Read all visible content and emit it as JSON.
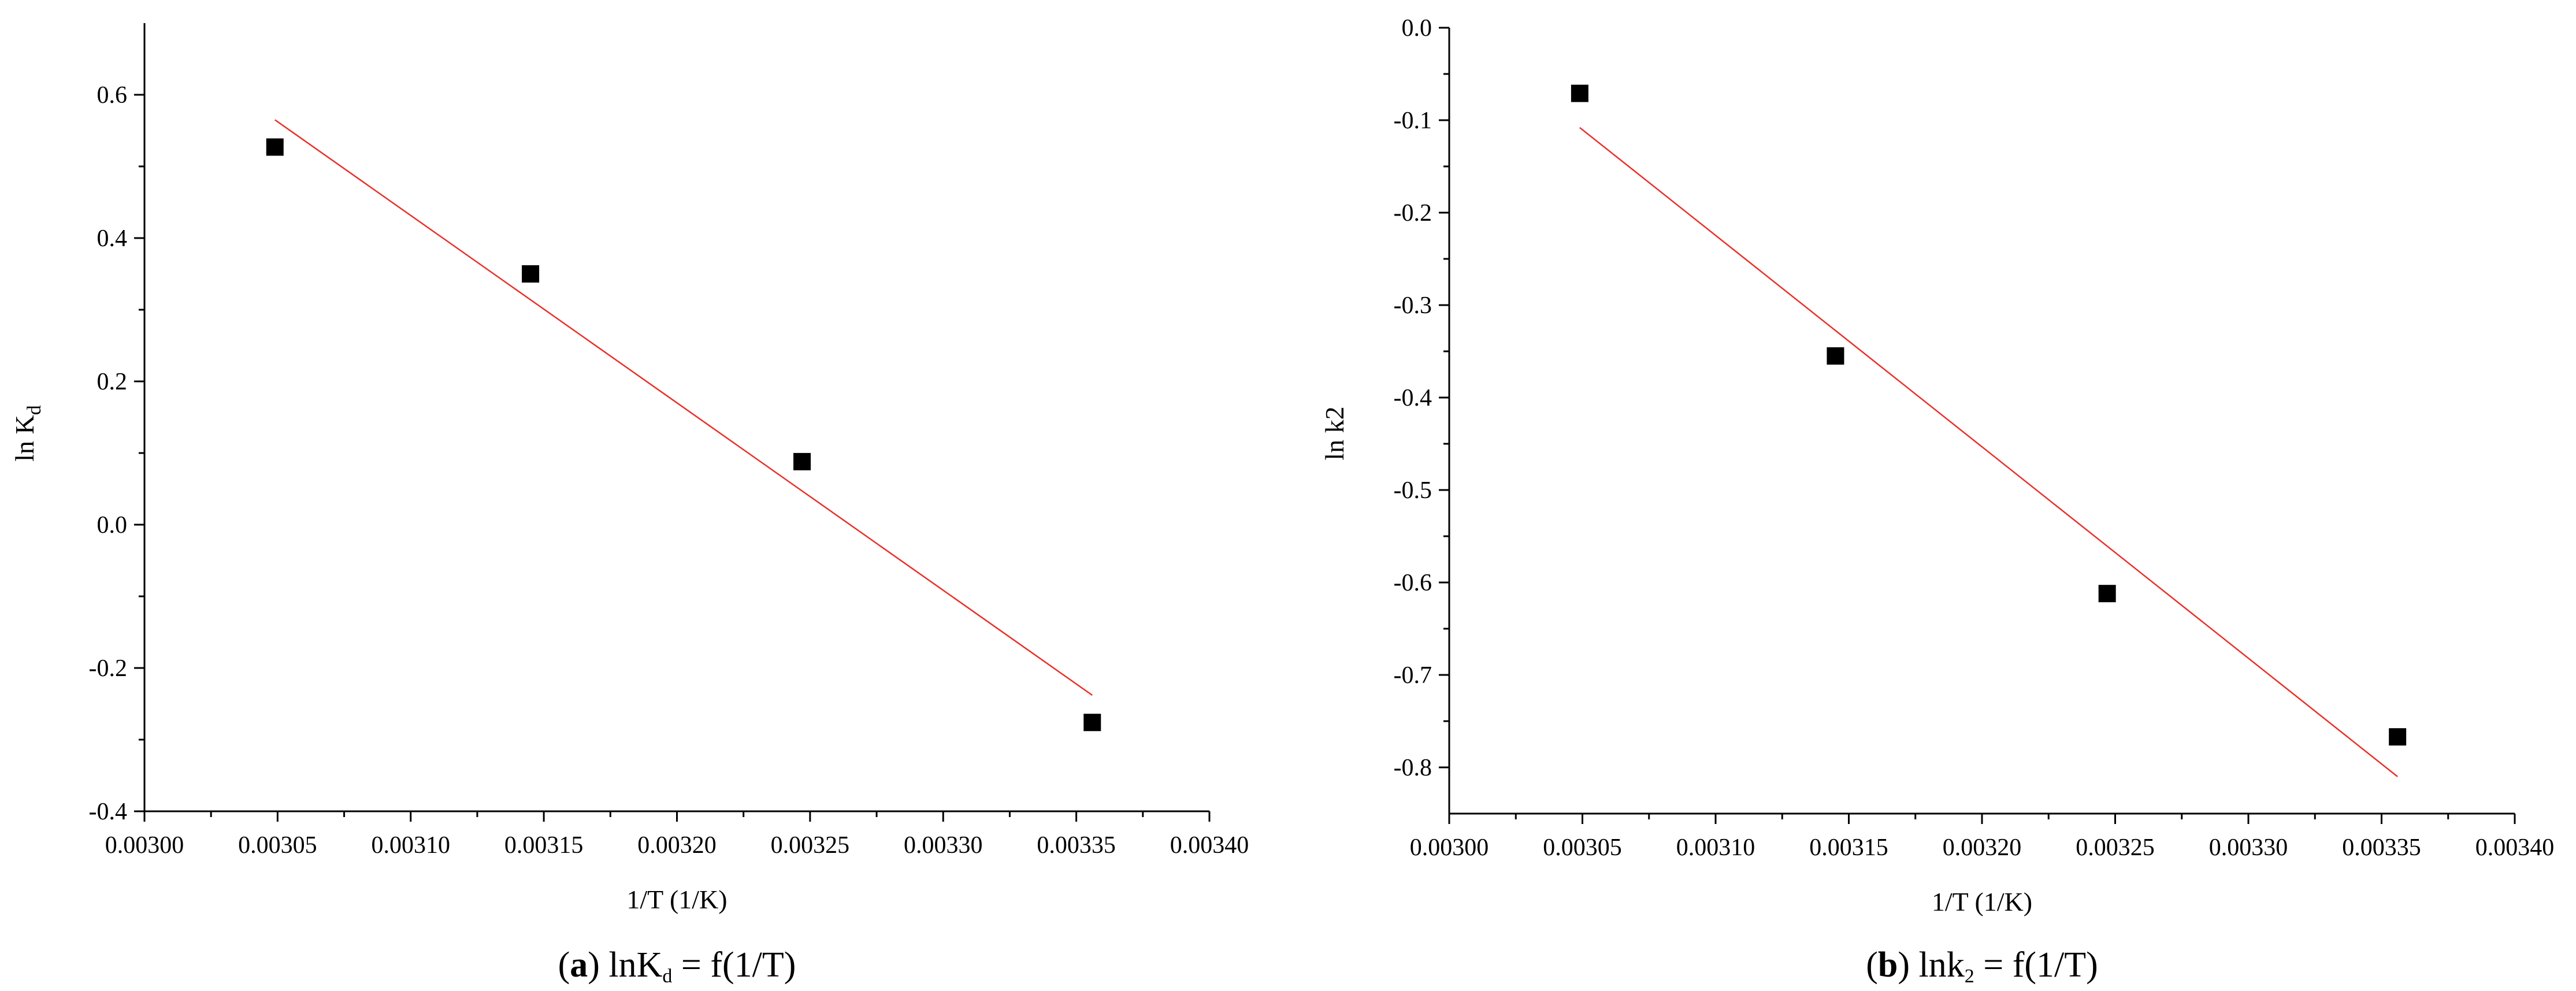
{
  "chart_data": [
    {
      "type": "scatter",
      "caption": {
        "letter": "a",
        "text": "lnK",
        "sub": "d",
        "rest": " = f(1/T)"
      },
      "xlabel": "1/T (1/K)",
      "ylabel": {
        "main": "ln K",
        "sub": "d"
      },
      "xlim": [
        0.003,
        0.0034
      ],
      "ylim": [
        -0.4,
        0.7
      ],
      "xticks": [
        "0.00300",
        "0.00305",
        "0.00310",
        "0.00315",
        "0.00320",
        "0.00325",
        "0.00330",
        "0.00335",
        "0.00340"
      ],
      "xtick_values": [
        0.003,
        0.00305,
        0.0031,
        0.00315,
        0.0032,
        0.00325,
        0.0033,
        0.00335,
        0.0034
      ],
      "yticks": [
        "-0.4",
        "-0.2",
        "0.0",
        "0.2",
        "0.4",
        "0.6"
      ],
      "ytick_values": [
        -0.4,
        -0.2,
        0.0,
        0.2,
        0.4,
        0.6
      ],
      "yminor_values": [
        -0.3,
        -0.1,
        0.1,
        0.3,
        0.5
      ],
      "points": [
        {
          "x": 0.003049,
          "y": 0.527
        },
        {
          "x": 0.003145,
          "y": 0.35
        },
        {
          "x": 0.003247,
          "y": 0.088
        },
        {
          "x": 0.003356,
          "y": -0.276
        }
      ],
      "fit": {
        "x": [
          0.003049,
          0.003356
        ],
        "y": [
          0.565,
          -0.238
        ],
        "color": "#e8312a"
      },
      "marker_color": "#000000",
      "grid": false
    },
    {
      "type": "scatter",
      "caption": {
        "letter": "b",
        "text": "lnk",
        "sub": "2",
        "rest": " = f(1/T)"
      },
      "xlabel": "1/T (1/K)",
      "ylabel": {
        "main": "ln k2",
        "sub": ""
      },
      "xlim": [
        0.003,
        0.0034
      ],
      "ylim": [
        -0.85,
        0.0
      ],
      "xticks": [
        "0.00300",
        "0.00305",
        "0.00310",
        "0.00315",
        "0.00320",
        "0.00325",
        "0.00330",
        "0.00335",
        "0.00340"
      ],
      "xtick_values": [
        0.003,
        0.00305,
        0.0031,
        0.00315,
        0.0032,
        0.00325,
        0.0033,
        0.00335,
        0.0034
      ],
      "yticks": [
        "0.0",
        "-0.1",
        "-0.2",
        "-0.3",
        "-0.4",
        "-0.5",
        "-0.6",
        "-0.7",
        "-0.8"
      ],
      "ytick_values": [
        0.0,
        -0.1,
        -0.2,
        -0.3,
        -0.4,
        -0.5,
        -0.6,
        -0.7,
        -0.8
      ],
      "yminor_values": [
        -0.05,
        -0.15,
        -0.25,
        -0.35,
        -0.45,
        -0.55,
        -0.65,
        -0.75
      ],
      "points": [
        {
          "x": 0.003049,
          "y": -0.071
        },
        {
          "x": 0.003145,
          "y": -0.355
        },
        {
          "x": 0.003247,
          "y": -0.612
        },
        {
          "x": 0.003356,
          "y": -0.767
        }
      ],
      "fit": {
        "x": [
          0.003049,
          0.003356
        ],
        "y": [
          -0.108,
          -0.81
        ],
        "color": "#e8312a"
      },
      "marker_color": "#000000",
      "grid": false
    }
  ]
}
